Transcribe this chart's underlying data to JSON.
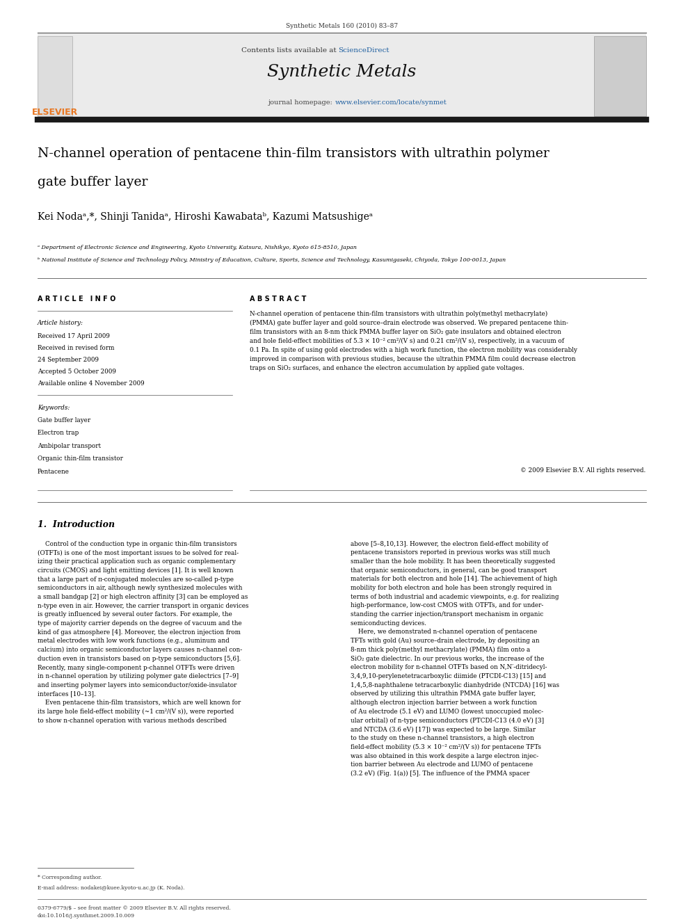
{
  "page_width": 9.92,
  "page_height": 13.23,
  "bg_color": "#ffffff",
  "journal_cite": "Synthetic Metals 160 (2010) 83–87",
  "header_bg": "#e8e8e8",
  "header_bar_color": "#1a1a1a",
  "contents_text": "Contents lists available at ",
  "sciencedirect_text": "ScienceDirect",
  "sciencedirect_color": "#2060a0",
  "journal_title": "Synthetic Metals",
  "journal_homepage_prefix": "journal homepage: ",
  "journal_url": "www.elsevier.com/locate/synmet",
  "journal_url_color": "#2060a0",
  "paper_title_line1": "N-channel operation of pentacene thin-film transistors with ultrathin polymer",
  "paper_title_line2": "gate buffer layer",
  "authors": "Kei Nodaᵃ,*, Shinji Tanidaᵃ, Hiroshi Kawabataᵇ, Kazumi Matsushigeᵃ",
  "affil_a": "ᵃ Department of Electronic Science and Engineering, Kyoto University, Katsura, Nishikyo, Kyoto 615-8510, Japan",
  "affil_b": "ᵇ National Institute of Science and Technology Policy, Ministry of Education, Culture, Sports, Science and Technology, Kasumigaseki, Chiyoda, Tokyo 100-0013, Japan",
  "article_info_header": "A R T I C L E   I N F O",
  "abstract_header": "A B S T R A C T",
  "article_history_label": "Article history:",
  "received1": "Received 17 April 2009",
  "received_revised": "Received in revised form",
  "received_revised_date": "24 September 2009",
  "accepted": "Accepted 5 October 2009",
  "available": "Available online 4 November 2009",
  "keywords_label": "Keywords:",
  "keywords": [
    "Gate buffer layer",
    "Electron trap",
    "Ambipolar transport",
    "Organic thin-film transistor",
    "Pentacene"
  ],
  "copyright": "© 2009 Elsevier B.V. All rights reserved.",
  "section1_title": "1.  Introduction",
  "footer_text1": "* Corresponding author.",
  "footer_text2": "E-mail address: nodakei@kuee.kyoto-u.ac.jp (K. Noda).",
  "footer_bottom1": "0379-6779/$ – see front matter © 2009 Elsevier B.V. All rights reserved.",
  "footer_bottom2": "doi:10.1016/j.synthmet.2009.10.009",
  "elsevier_orange": "#e87722",
  "link_color": "#2060a0"
}
